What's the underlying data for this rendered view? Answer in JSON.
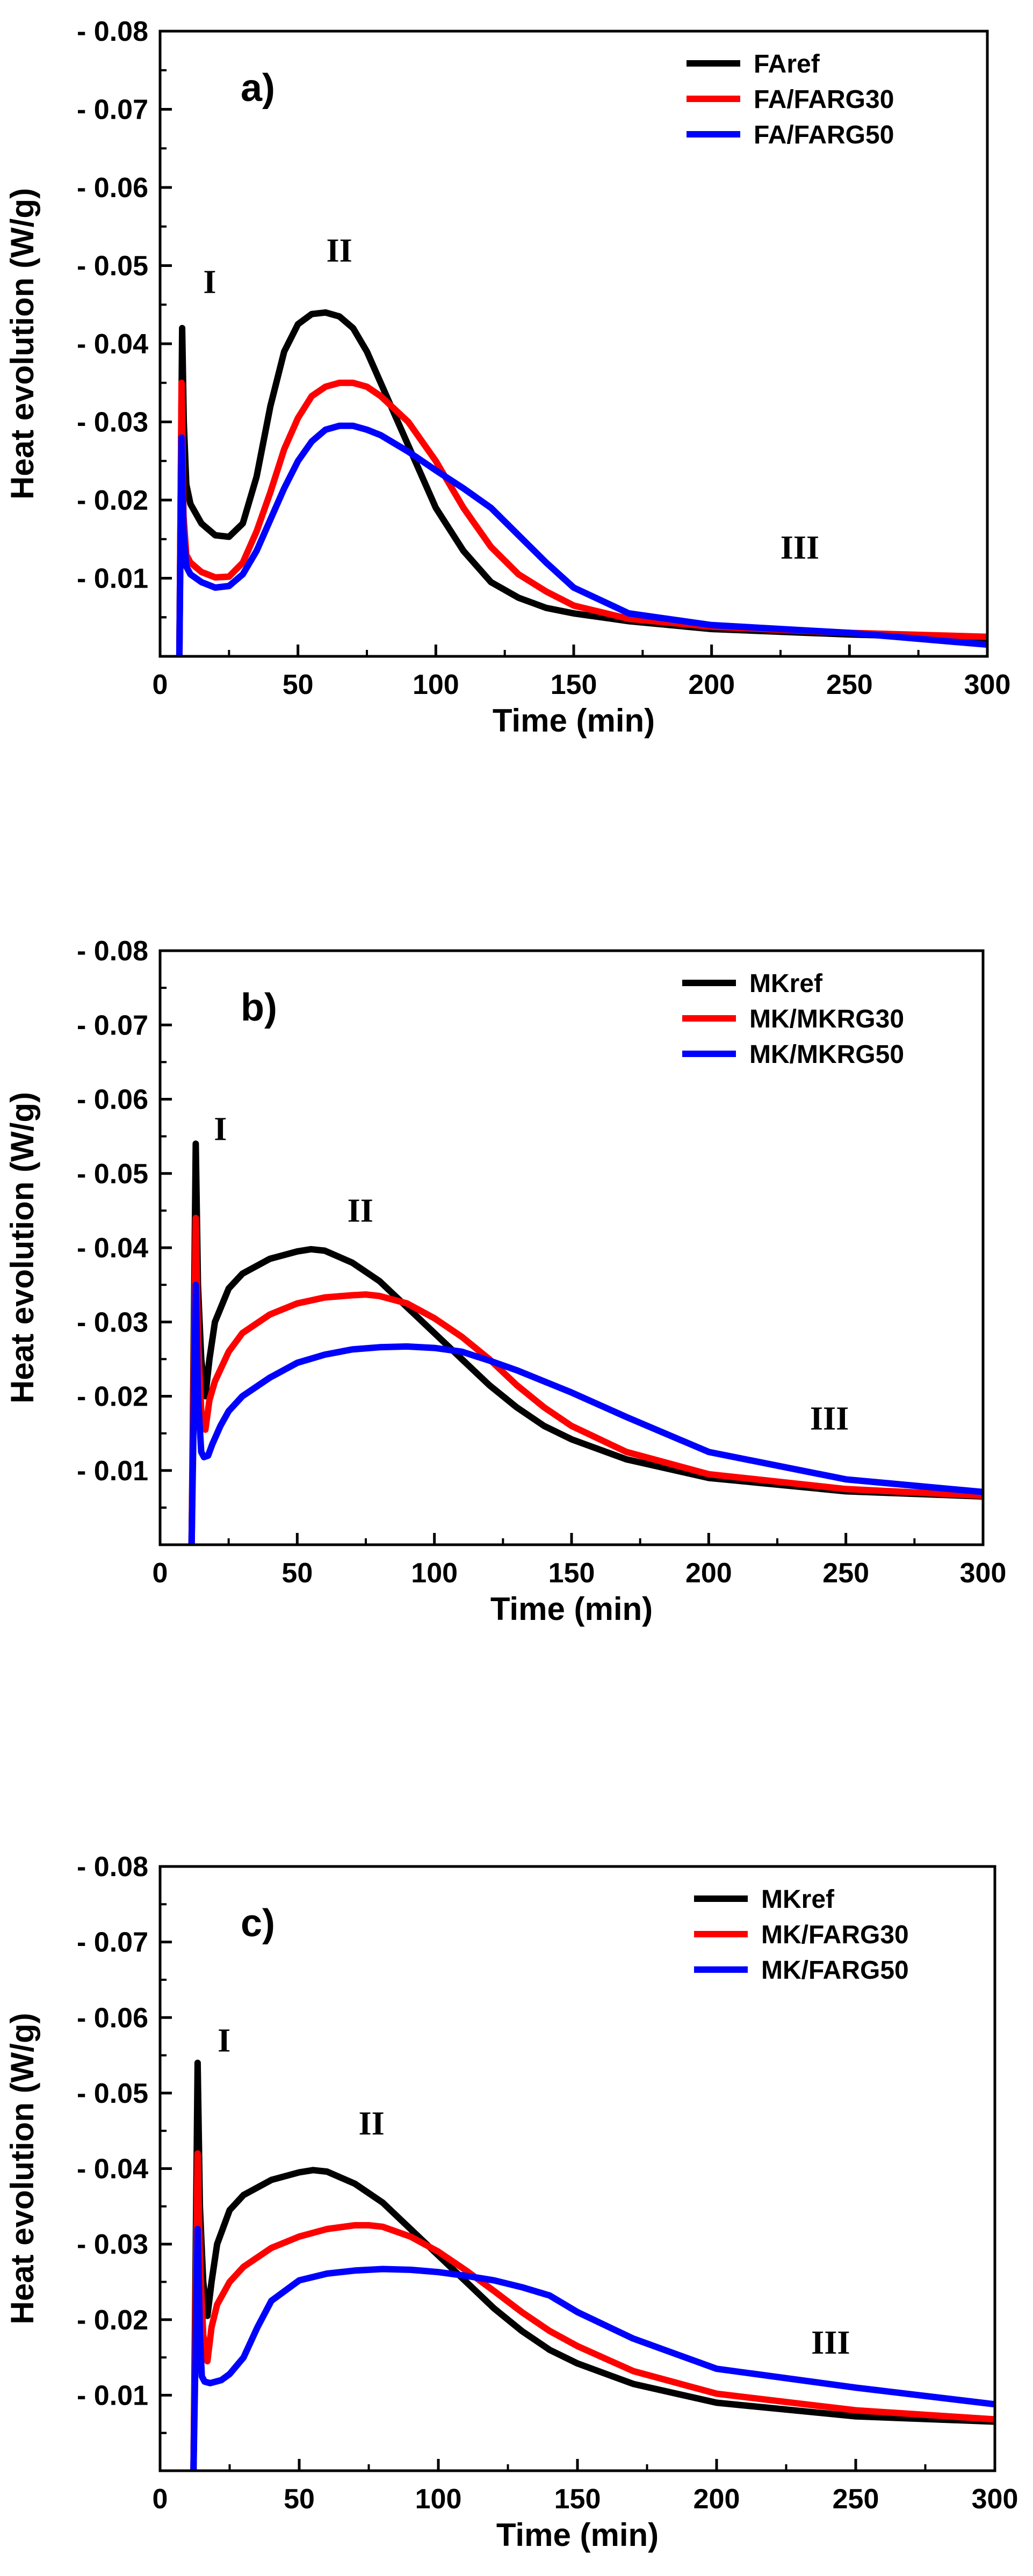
{
  "chart_data": [
    {
      "type": "line",
      "panel_label": "a)",
      "xlabel": "Time (min)",
      "ylabel": "Heat evolution (W/g)",
      "xlim": [
        0,
        300
      ],
      "ylim": [
        0,
        -0.08
      ],
      "xticks": [
        0,
        50,
        100,
        150,
        200,
        250,
        300
      ],
      "xtick_labels": [
        "0",
        "50",
        "100",
        "150",
        "200",
        "250",
        "300"
      ],
      "yticks": [
        -0.01,
        -0.02,
        -0.03,
        -0.04,
        -0.05,
        -0.06,
        -0.07,
        -0.08
      ],
      "ytick_labels": [
        "- 0.01",
        "- 0.02",
        "- 0.03",
        "- 0.04",
        "- 0.05",
        "- 0.06",
        "- 0.07",
        "- 0.08"
      ],
      "legend_position": "top-right",
      "annotations": [
        {
          "text": "I",
          "x": 18,
          "y": -0.0465
        },
        {
          "text": "II",
          "x": 65,
          "y": -0.0505
        },
        {
          "text": "III",
          "x": 232,
          "y": -0.0125
        }
      ],
      "series": [
        {
          "name": "FAref",
          "color": "#000000",
          "x": [
            7,
            8,
            8.6,
            9.5,
            11,
            15,
            20,
            25,
            30,
            35,
            40,
            45,
            50,
            55,
            60,
            65,
            70,
            75,
            80,
            90,
            100,
            110,
            120,
            130,
            140,
            150,
            170,
            200,
            250,
            300
          ],
          "y": [
            0,
            -0.042,
            -0.03,
            -0.022,
            -0.0195,
            -0.017,
            -0.0155,
            -0.0153,
            -0.017,
            -0.023,
            -0.032,
            -0.039,
            -0.0425,
            -0.0438,
            -0.044,
            -0.0435,
            -0.042,
            -0.039,
            -0.035,
            -0.027,
            -0.019,
            -0.0135,
            -0.0095,
            -0.0075,
            -0.0062,
            -0.0055,
            -0.0045,
            -0.0035,
            -0.0028,
            -0.0023
          ]
        },
        {
          "name": "FA/FARG30",
          "color": "#ff0000",
          "x": [
            7,
            7.8,
            8.5,
            9.5,
            11,
            15,
            20,
            25,
            30,
            35,
            40,
            45,
            50,
            55,
            60,
            65,
            70,
            75,
            80,
            90,
            100,
            110,
            120,
            130,
            140,
            150,
            170,
            200,
            250,
            300
          ],
          "y": [
            0,
            -0.035,
            -0.018,
            -0.013,
            -0.012,
            -0.0108,
            -0.0101,
            -0.0102,
            -0.012,
            -0.016,
            -0.021,
            -0.0265,
            -0.0305,
            -0.0333,
            -0.0345,
            -0.035,
            -0.035,
            -0.0345,
            -0.0333,
            -0.03,
            -0.025,
            -0.019,
            -0.014,
            -0.0105,
            -0.0083,
            -0.0065,
            -0.0048,
            -0.0038,
            -0.003,
            -0.0025
          ]
        },
        {
          "name": "FA/FARG50",
          "color": "#0000ff",
          "x": [
            7,
            7.8,
            8.5,
            9.5,
            11,
            15,
            20,
            25,
            30,
            35,
            40,
            45,
            50,
            55,
            60,
            65,
            70,
            75,
            80,
            90,
            100,
            110,
            120,
            130,
            140,
            150,
            170,
            200,
            250,
            300
          ],
          "y": [
            0,
            -0.028,
            -0.016,
            -0.0115,
            -0.0105,
            -0.0095,
            -0.0088,
            -0.009,
            -0.0105,
            -0.0135,
            -0.0175,
            -0.0215,
            -0.025,
            -0.0275,
            -0.029,
            -0.0295,
            -0.0295,
            -0.029,
            -0.0283,
            -0.0262,
            -0.0238,
            -0.0215,
            -0.019,
            -0.0155,
            -0.012,
            -0.0088,
            -0.0055,
            -0.004,
            -0.003,
            -0.0015
          ]
        }
      ]
    },
    {
      "type": "line",
      "panel_label": "b)",
      "xlabel": "Time (min)",
      "ylabel": "Heat evolution (W/g)",
      "xlim": [
        0,
        300
      ],
      "ylim": [
        0,
        -0.08
      ],
      "xticks": [
        0,
        50,
        100,
        150,
        200,
        250,
        300
      ],
      "xtick_labels": [
        "0",
        "50",
        "100",
        "150",
        "200",
        "250",
        "300"
      ],
      "yticks": [
        -0.01,
        -0.02,
        -0.03,
        -0.04,
        -0.05,
        -0.06,
        -0.07,
        -0.08
      ],
      "ytick_labels": [
        "- 0.01",
        "- 0.02",
        "- 0.03",
        "- 0.04",
        "- 0.05",
        "- 0.06",
        "- 0.07",
        "- 0.08"
      ],
      "legend_position": "top-right",
      "annotations": [
        {
          "text": "I",
          "x": 22,
          "y": -0.0545
        },
        {
          "text": "II",
          "x": 73,
          "y": -0.0435
        },
        {
          "text": "III",
          "x": 244,
          "y": -0.0155
        }
      ],
      "series": [
        {
          "name": "MKref",
          "color": "#000000",
          "x": [
            11.5,
            13,
            13.8,
            15,
            16.5,
            18,
            20,
            25,
            30,
            40,
            50,
            55,
            60,
            70,
            80,
            90,
            100,
            110,
            120,
            130,
            140,
            150,
            170,
            200,
            250,
            300
          ],
          "y": [
            0,
            -0.054,
            -0.035,
            -0.025,
            -0.02,
            -0.025,
            -0.03,
            -0.0345,
            -0.0365,
            -0.0385,
            -0.0395,
            -0.0398,
            -0.0396,
            -0.038,
            -0.0355,
            -0.032,
            -0.0285,
            -0.025,
            -0.0215,
            -0.0185,
            -0.016,
            -0.0142,
            -0.0115,
            -0.009,
            -0.0072,
            -0.0065
          ]
        },
        {
          "name": "MK/MKRG30",
          "color": "#ff0000",
          "x": [
            11.5,
            13,
            13.8,
            15,
            16.5,
            18,
            20,
            25,
            30,
            40,
            50,
            60,
            70,
            75,
            80,
            90,
            100,
            110,
            120,
            130,
            140,
            150,
            170,
            200,
            250,
            300
          ],
          "y": [
            0,
            -0.044,
            -0.028,
            -0.018,
            -0.0155,
            -0.0195,
            -0.022,
            -0.026,
            -0.0285,
            -0.031,
            -0.0325,
            -0.0333,
            -0.0336,
            -0.0337,
            -0.0335,
            -0.0325,
            -0.0305,
            -0.028,
            -0.025,
            -0.0215,
            -0.0185,
            -0.016,
            -0.0125,
            -0.0095,
            -0.0075,
            -0.0066
          ]
        },
        {
          "name": "MK/MKRG50",
          "color": "#0000ff",
          "x": [
            11.5,
            13,
            13.8,
            15,
            16,
            17.5,
            19,
            22,
            25,
            30,
            40,
            50,
            60,
            70,
            80,
            90,
            100,
            110,
            120,
            130,
            140,
            150,
            170,
            200,
            250,
            300
          ],
          "y": [
            0,
            -0.035,
            -0.02,
            -0.0125,
            -0.0118,
            -0.012,
            -0.0135,
            -0.016,
            -0.018,
            -0.02,
            -0.0225,
            -0.0245,
            -0.0256,
            -0.0263,
            -0.0266,
            -0.0267,
            -0.0265,
            -0.026,
            -0.0248,
            -0.0235,
            -0.022,
            -0.0205,
            -0.0172,
            -0.0125,
            -0.0088,
            -0.0071
          ]
        }
      ]
    },
    {
      "type": "line",
      "panel_label": "c)",
      "xlabel": "Time (min)",
      "ylabel": "Heat evolution (W/g)",
      "xlim": [
        0,
        300
      ],
      "ylim": [
        0,
        -0.08
      ],
      "xticks": [
        0,
        50,
        100,
        150,
        200,
        250,
        300
      ],
      "xtick_labels": [
        "0",
        "50",
        "100",
        "150",
        "200",
        "250",
        "300"
      ],
      "yticks": [
        -0.01,
        -0.02,
        -0.03,
        -0.04,
        -0.05,
        -0.06,
        -0.07,
        -0.08
      ],
      "ytick_labels": [
        "- 0.01",
        "- 0.02",
        "- 0.03",
        "- 0.04",
        "- 0.05",
        "- 0.06",
        "- 0.07",
        "- 0.08"
      ],
      "legend_position": "top-right",
      "annotations": [
        {
          "text": "I",
          "x": 23,
          "y": -0.0555
        },
        {
          "text": "II",
          "x": 76,
          "y": -0.0445
        },
        {
          "text": "III",
          "x": 241,
          "y": -0.0155
        }
      ],
      "series": [
        {
          "name": "MKref",
          "color": "#000000",
          "x": [
            12,
            13.5,
            14.3,
            15.5,
            17,
            18.5,
            20.5,
            25,
            30,
            40,
            50,
            55,
            60,
            70,
            80,
            90,
            100,
            110,
            120,
            130,
            140,
            150,
            170,
            200,
            250,
            300
          ],
          "y": [
            0,
            -0.054,
            -0.035,
            -0.025,
            -0.0205,
            -0.025,
            -0.03,
            -0.0345,
            -0.0365,
            -0.0385,
            -0.0395,
            -0.0398,
            -0.0396,
            -0.038,
            -0.0355,
            -0.032,
            -0.0285,
            -0.025,
            -0.0215,
            -0.0185,
            -0.016,
            -0.0142,
            -0.0115,
            -0.009,
            -0.0072,
            -0.0065
          ]
        },
        {
          "name": "MK/FARG30",
          "color": "#ff0000",
          "x": [
            12,
            13.5,
            14.3,
            15.5,
            17,
            18.5,
            20.5,
            25,
            30,
            40,
            50,
            60,
            70,
            75,
            80,
            90,
            100,
            110,
            120,
            130,
            140,
            150,
            170,
            200,
            250,
            300
          ],
          "y": [
            0,
            -0.042,
            -0.028,
            -0.018,
            -0.0145,
            -0.019,
            -0.022,
            -0.025,
            -0.027,
            -0.0295,
            -0.031,
            -0.032,
            -0.0325,
            -0.0325,
            -0.0323,
            -0.031,
            -0.029,
            -0.0265,
            -0.0238,
            -0.021,
            -0.0185,
            -0.0165,
            -0.0132,
            -0.0102,
            -0.008,
            -0.0068
          ]
        },
        {
          "name": "MK/FARG50",
          "color": "#0000ff",
          "x": [
            12,
            13.5,
            14.3,
            15,
            16,
            18,
            22,
            25,
            30,
            35,
            40,
            50,
            60,
            70,
            80,
            90,
            100,
            110,
            120,
            130,
            140,
            150,
            170,
            200,
            250,
            300
          ],
          "y": [
            0,
            -0.032,
            -0.018,
            -0.0125,
            -0.0118,
            -0.0116,
            -0.012,
            -0.0128,
            -0.015,
            -0.019,
            -0.0225,
            -0.0252,
            -0.0261,
            -0.0265,
            -0.0267,
            -0.0266,
            -0.0263,
            -0.0258,
            -0.0252,
            -0.0243,
            -0.0232,
            -0.021,
            -0.0175,
            -0.0135,
            -0.011,
            -0.0088
          ]
        }
      ]
    }
  ]
}
